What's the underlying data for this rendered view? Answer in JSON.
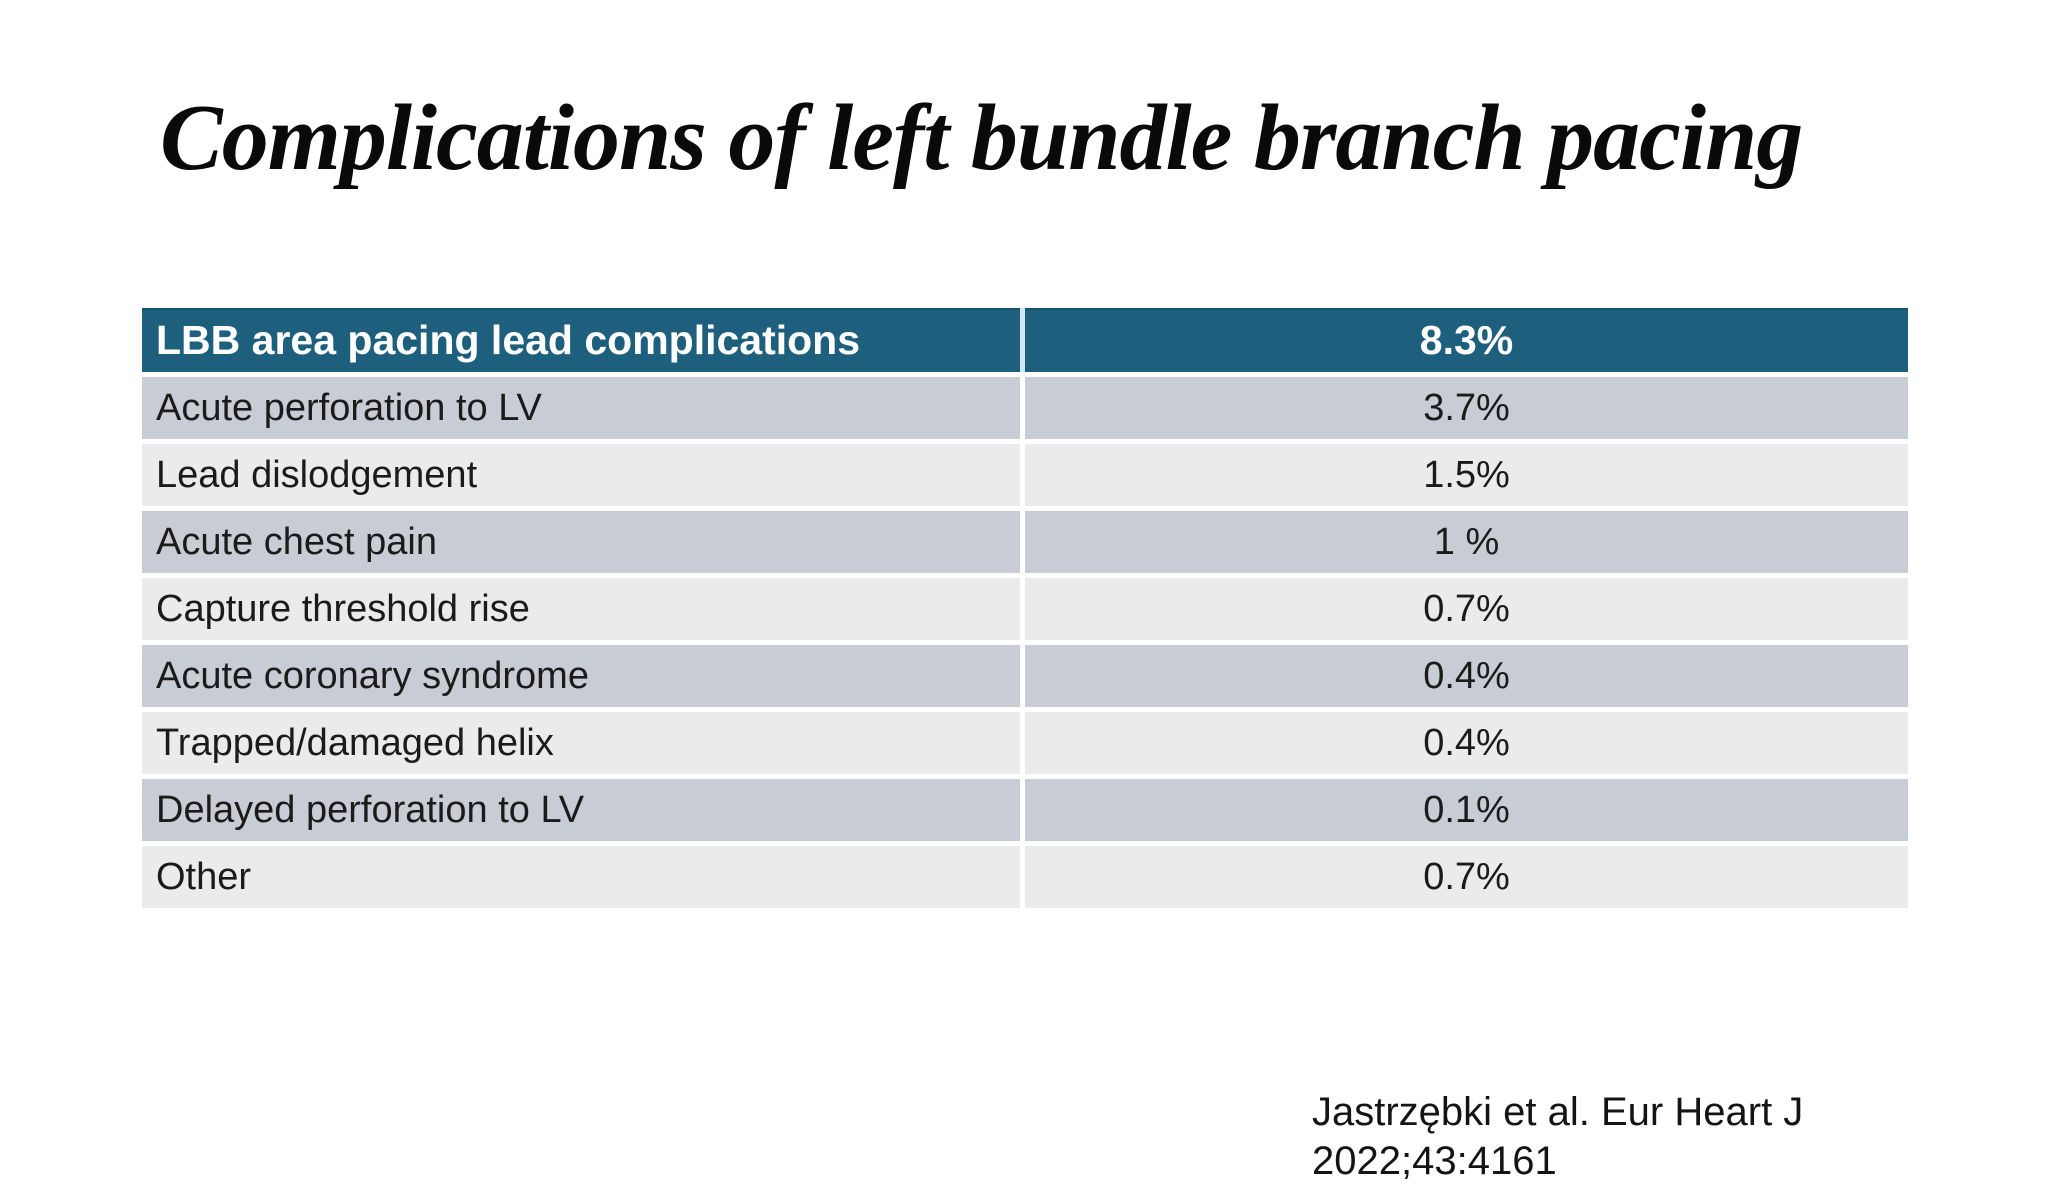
{
  "slide": {
    "title": "Complications of left bundle branch pacing",
    "citation": {
      "line1": "Jastrzębki et al. Eur Heart J",
      "line2": "2022;43:4161"
    }
  },
  "table": {
    "header": {
      "label": "LBB area pacing lead complications",
      "value": "8.3%"
    },
    "rows": [
      {
        "label": "Acute perforation to LV",
        "value": "3.7%"
      },
      {
        "label": "Lead dislodgement",
        "value": "1.5%"
      },
      {
        "label": "Acute chest pain",
        "value": "1 %"
      },
      {
        "label": "Capture threshold rise",
        "value": "0.7%"
      },
      {
        "label": "Acute coronary syndrome",
        "value": "0.4%"
      },
      {
        "label": "Trapped/damaged helix",
        "value": "0.4%"
      },
      {
        "label": "Delayed perforation to LV",
        "value": "0.1%"
      },
      {
        "label": "Other",
        "value": "0.7%"
      }
    ]
  },
  "colors": {
    "header_bg": "#1e5f7e",
    "header_divider": "#cfe9f3",
    "row_dark": "#c8cdd5",
    "row_light": "#e9ebed",
    "header_text": "#ffffff",
    "body_text": "#1b1b1b",
    "title_text": "#0a0a0a",
    "page_bg": "#ffffff"
  }
}
